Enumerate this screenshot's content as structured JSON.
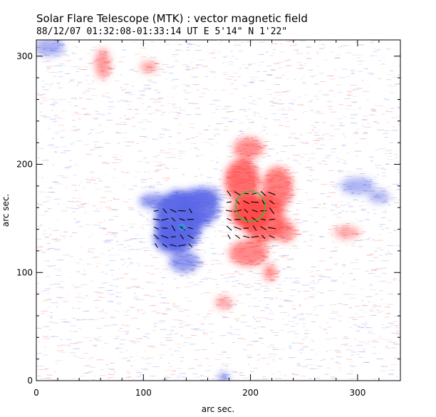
{
  "chart_data": {
    "type": "heatmap",
    "title": "Solar Flare Telescope (MTK) : vector magnetic field",
    "subtitle": "88/12/07  01:32:08-01:33:14 UT    E 5'14\"  N 1'22\"",
    "xlabel": "arc sec.",
    "ylabel": "arc sec.",
    "xlim": [
      0,
      340
    ],
    "ylim": [
      0,
      315
    ],
    "xticks": [
      0,
      100,
      200,
      300
    ],
    "yticks": [
      0,
      100,
      200,
      300
    ],
    "grid": false,
    "colors": {
      "negative_polarity": "#5a66e6",
      "positive_polarity": "#ff4a4a",
      "circle_green": "#38c238",
      "circle_cyan": "#18b8c8",
      "vector": "#000000",
      "axis": "#000000"
    },
    "negative_regions": [
      {
        "cx": 133,
        "cy": 148,
        "rx": 22,
        "ry": 28,
        "strength": 1.0
      },
      {
        "cx": 150,
        "cy": 160,
        "rx": 20,
        "ry": 18,
        "strength": 0.85
      },
      {
        "cx": 125,
        "cy": 132,
        "rx": 15,
        "ry": 14,
        "strength": 0.9
      },
      {
        "cx": 110,
        "cy": 166,
        "rx": 14,
        "ry": 7,
        "strength": 0.55
      },
      {
        "cx": 138,
        "cy": 110,
        "rx": 14,
        "ry": 10,
        "strength": 0.5
      },
      {
        "cx": 160,
        "cy": 170,
        "rx": 12,
        "ry": 9,
        "strength": 0.45
      },
      {
        "cx": 12,
        "cy": 308,
        "rx": 14,
        "ry": 8,
        "strength": 0.3
      },
      {
        "cx": 300,
        "cy": 180,
        "rx": 16,
        "ry": 8,
        "strength": 0.22
      },
      {
        "cx": 320,
        "cy": 170,
        "rx": 10,
        "ry": 6,
        "strength": 0.2
      },
      {
        "cx": 175,
        "cy": 2,
        "rx": 5,
        "ry": 6,
        "strength": 0.4
      }
    ],
    "positive_regions": [
      {
        "cx": 200,
        "cy": 155,
        "rx": 18,
        "ry": 16,
        "strength": 1.0
      },
      {
        "cx": 192,
        "cy": 185,
        "rx": 16,
        "ry": 20,
        "strength": 0.75
      },
      {
        "cx": 212,
        "cy": 150,
        "rx": 20,
        "ry": 22,
        "strength": 0.7
      },
      {
        "cx": 225,
        "cy": 178,
        "rx": 14,
        "ry": 20,
        "strength": 0.6
      },
      {
        "cx": 198,
        "cy": 118,
        "rx": 18,
        "ry": 12,
        "strength": 0.5
      },
      {
        "cx": 198,
        "cy": 215,
        "rx": 14,
        "ry": 10,
        "strength": 0.45
      },
      {
        "cx": 218,
        "cy": 100,
        "rx": 6,
        "ry": 8,
        "strength": 0.4
      },
      {
        "cx": 232,
        "cy": 138,
        "rx": 10,
        "ry": 10,
        "strength": 0.45
      },
      {
        "cx": 62,
        "cy": 293,
        "rx": 7,
        "ry": 14,
        "strength": 0.35
      },
      {
        "cx": 105,
        "cy": 290,
        "rx": 8,
        "ry": 5,
        "strength": 0.3
      },
      {
        "cx": 175,
        "cy": 72,
        "rx": 8,
        "ry": 6,
        "strength": 0.25
      },
      {
        "cx": 290,
        "cy": 137,
        "rx": 12,
        "ry": 6,
        "strength": 0.2
      }
    ],
    "vector_grid": {
      "negative_area": {
        "x": [
          112,
          120,
          128,
          136,
          144
        ],
        "y": [
          125,
          133,
          141,
          149,
          157
        ]
      },
      "positive_area": {
        "x": [
          180,
          188,
          196,
          204,
          212,
          220
        ],
        "y": [
          133,
          141,
          149,
          157,
          165,
          173
        ]
      }
    },
    "circles": [
      {
        "name": "green-contour",
        "cx": 200,
        "cy": 161,
        "r": 14
      },
      {
        "name": "cyan-marker",
        "cx": 136,
        "cy": 142,
        "r": 2.5
      }
    ]
  }
}
